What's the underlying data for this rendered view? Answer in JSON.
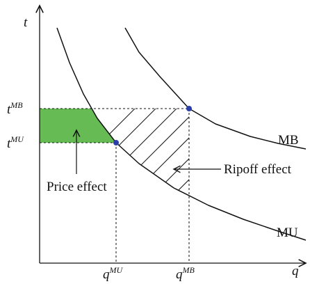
{
  "axes": {
    "y_label": "t",
    "x_label": "q"
  },
  "y_ticks": [
    {
      "base": "t",
      "sup": "MB"
    },
    {
      "base": "t",
      "sup": "MU"
    }
  ],
  "x_ticks": [
    {
      "base": "q",
      "sup": "MU"
    },
    {
      "base": "q",
      "sup": "MB"
    }
  ],
  "curves": {
    "mb": "MB",
    "mu": "MU"
  },
  "annotations": {
    "price_effect": "Price effect",
    "ripoff_effect": "Ripoff effect"
  }
}
